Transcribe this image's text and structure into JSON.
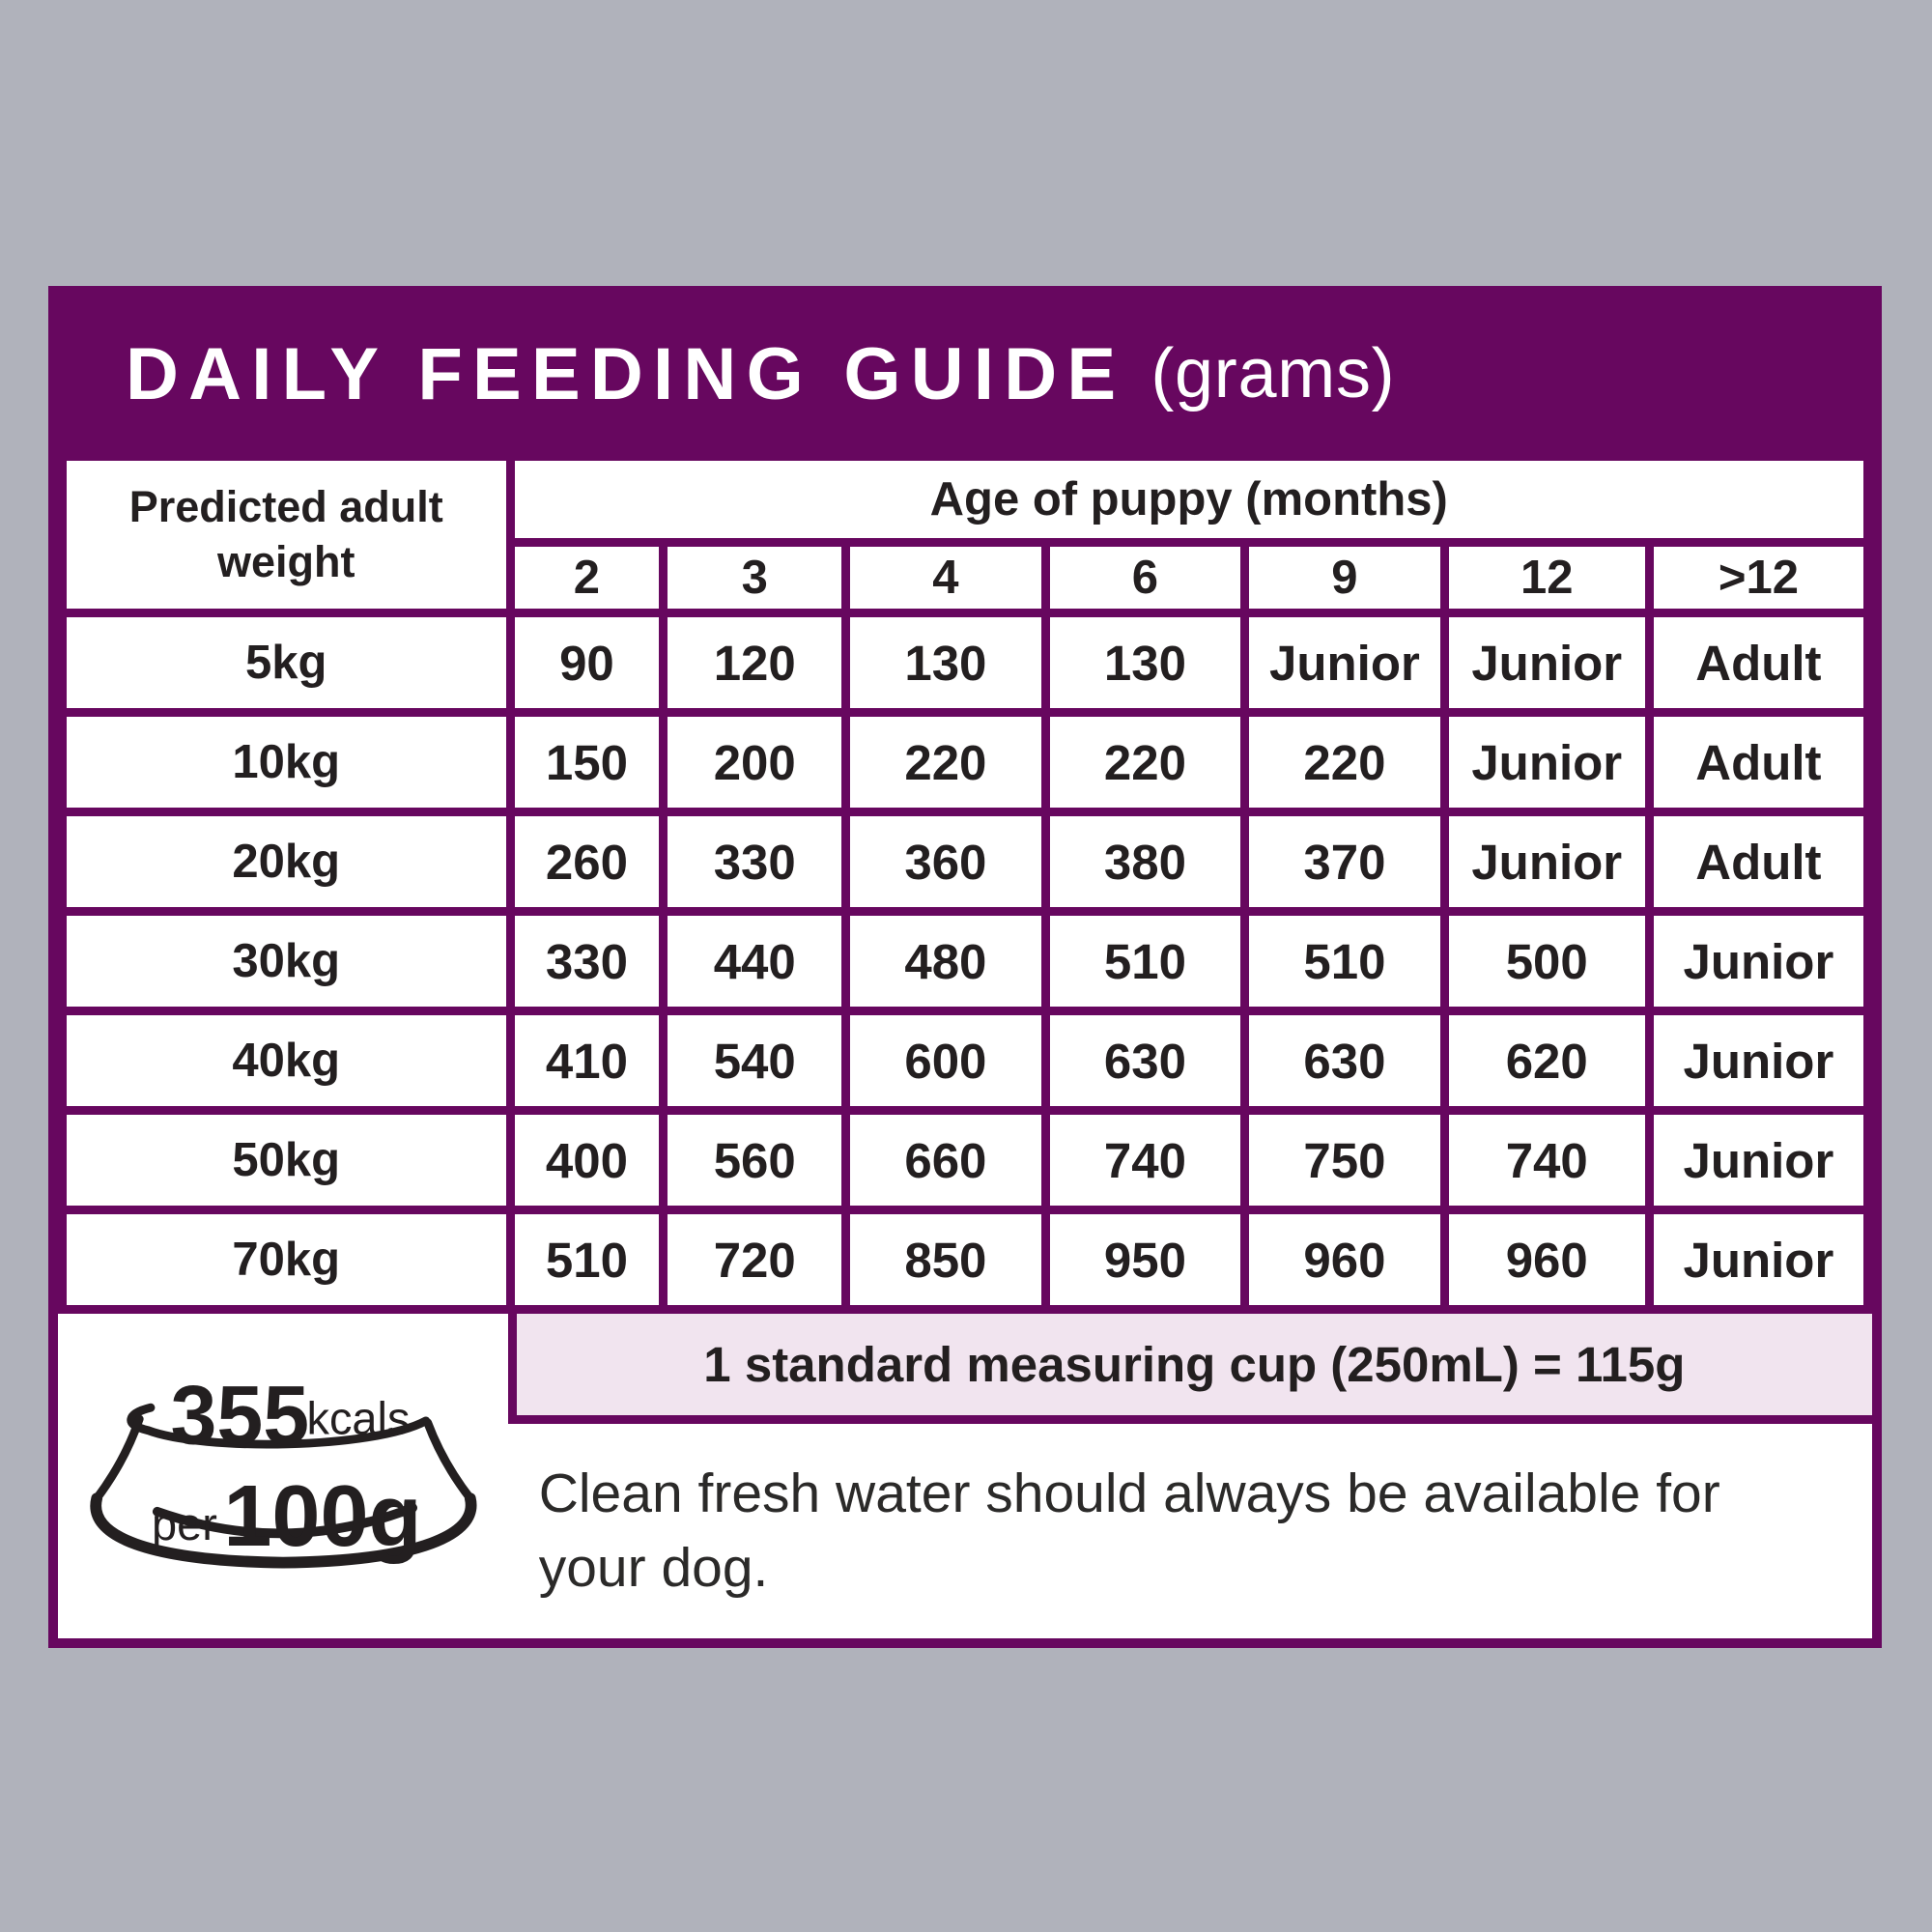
{
  "colors": {
    "purple": "#67075F",
    "pink_strip": "#F1E4EF",
    "background_gray": "#B0B2BB",
    "text_black": "#231F20",
    "white": "#FFFFFF"
  },
  "title": {
    "main": "DAILY FEEDING GUIDE",
    "suffix": "(grams)"
  },
  "table": {
    "corner_header": "Predicted adult weight",
    "age_header": "Age of puppy (months)",
    "age_columns": [
      "2",
      "3",
      "4",
      "6",
      "9",
      "12",
      ">12"
    ],
    "rows": [
      {
        "weight": "5kg",
        "values": [
          "90",
          "120",
          "130",
          "130",
          "Junior",
          "Junior",
          "Adult"
        ]
      },
      {
        "weight": "10kg",
        "values": [
          "150",
          "200",
          "220",
          "220",
          "220",
          "Junior",
          "Adult"
        ]
      },
      {
        "weight": "20kg",
        "values": [
          "260",
          "330",
          "360",
          "380",
          "370",
          "Junior",
          "Adult"
        ]
      },
      {
        "weight": "30kg",
        "values": [
          "330",
          "440",
          "480",
          "510",
          "510",
          "500",
          "Junior"
        ]
      },
      {
        "weight": "40kg",
        "values": [
          "410",
          "540",
          "600",
          "630",
          "630",
          "620",
          "Junior"
        ]
      },
      {
        "weight": "50kg",
        "values": [
          "400",
          "560",
          "660",
          "740",
          "750",
          "740",
          "Junior"
        ]
      },
      {
        "weight": "70kg",
        "values": [
          "510",
          "720",
          "850",
          "950",
          "960",
          "960",
          "Junior"
        ]
      }
    ],
    "cup_note": "1 standard measuring cup (250mL) = 115g"
  },
  "kcal_badge": {
    "value": "355",
    "unit": "kcals",
    "per": "per",
    "amount": "100g"
  },
  "footer_note": "Clean fresh water should always be available for your dog."
}
